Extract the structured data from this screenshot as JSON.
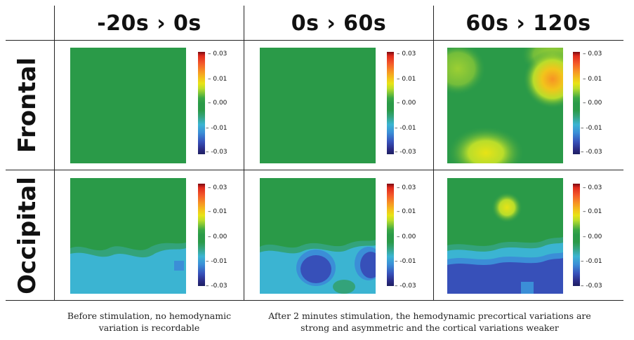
{
  "columns": [
    "-20s › 0s",
    "0s › 60s",
    "60s › 120s"
  ],
  "rows": [
    "Frontal",
    "Occipital"
  ],
  "colorbar": {
    "ticks": [
      "0.03",
      "0.01",
      "0.00",
      "-0.01",
      "-0.03"
    ]
  },
  "captions": {
    "left": "Before stimulation, no hemodynamic\nvariation is recordable",
    "right": "After 2 minutes stimulation, the hemodynamic precortical variations are\nstrong and asymmetric and the cortical variations  weaker"
  },
  "colors": {
    "baseline_green": "#2a9a48",
    "positive_yellow": "#e7e316",
    "positive_orange": "#f79324",
    "negative_cyan": "#3bb4d2",
    "negative_blue": "#3750b9"
  }
}
